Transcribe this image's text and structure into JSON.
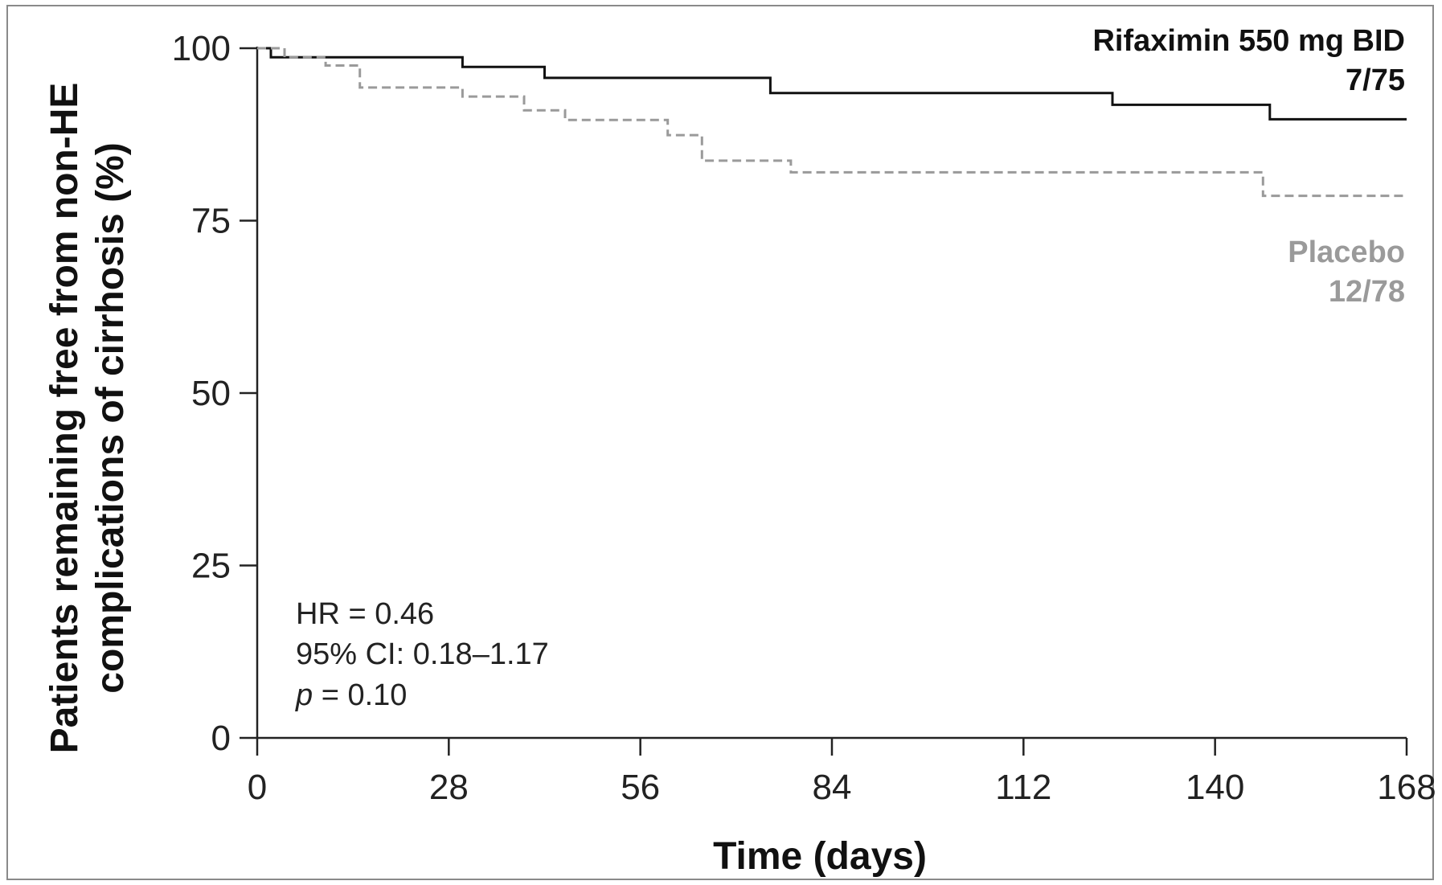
{
  "chart_data": {
    "type": "line",
    "step": true,
    "xlabel": "Time (days)",
    "ylabel_lines": [
      "Patients remaining free from non-HE",
      "complications of cirrhosis (%)"
    ],
    "xlim": [
      0,
      168
    ],
    "ylim": [
      0,
      100
    ],
    "xticks": [
      0,
      28,
      56,
      84,
      112,
      140,
      168
    ],
    "yticks": [
      0,
      25,
      50,
      75,
      100
    ],
    "grid": false,
    "legend": "right, inline labels",
    "series": [
      {
        "name": "Rifaximin 550 mg BID",
        "events": "7/75",
        "color": "#111111",
        "style": "solid",
        "points": [
          [
            0,
            100
          ],
          [
            2,
            100
          ],
          [
            2,
            98.7
          ],
          [
            30,
            98.7
          ],
          [
            30,
            97.3
          ],
          [
            42,
            97.3
          ],
          [
            42,
            95.7
          ],
          [
            75,
            95.7
          ],
          [
            75,
            93.5
          ],
          [
            125,
            93.5
          ],
          [
            125,
            91.8
          ],
          [
            148,
            91.8
          ],
          [
            148,
            89.7
          ],
          [
            168,
            89.7
          ]
        ]
      },
      {
        "name": "Placebo",
        "events": "12/78",
        "color": "#9a9a9a",
        "style": "dashed",
        "points": [
          [
            0,
            100
          ],
          [
            4,
            100
          ],
          [
            4,
            98.7
          ],
          [
            10,
            98.7
          ],
          [
            10,
            97.5
          ],
          [
            15,
            97.5
          ],
          [
            15,
            94.3
          ],
          [
            30,
            94.3
          ],
          [
            30,
            93
          ],
          [
            39,
            93
          ],
          [
            39,
            91
          ],
          [
            45,
            91
          ],
          [
            45,
            89.6
          ],
          [
            60,
            89.6
          ],
          [
            60,
            87.4
          ],
          [
            65,
            87.4
          ],
          [
            65,
            83.7
          ],
          [
            78,
            83.7
          ],
          [
            78,
            82
          ],
          [
            147,
            82
          ],
          [
            147,
            78.6
          ],
          [
            168,
            78.6
          ]
        ]
      }
    ],
    "annotations": {
      "hr": "HR = 0.46",
      "ci": "95% CI: 0.18–1.17",
      "p_symbol": "p",
      "p_value": " = 0.10"
    }
  }
}
